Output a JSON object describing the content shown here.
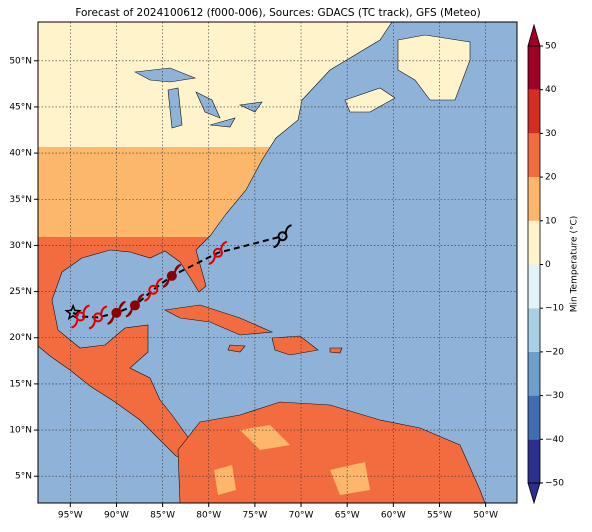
{
  "chart_data": {
    "type": "map",
    "title": "Forecast of 2024100612 (f000-006), Sources: GDACS (TC track), GFS (Meteo)",
    "xlim": [
      -98.5,
      -46.6
    ],
    "ylim": [
      2.1,
      54.2
    ],
    "xticks": [
      {
        "value": -95,
        "label": "95°W"
      },
      {
        "value": -90,
        "label": "90°W"
      },
      {
        "value": -85,
        "label": "85°W"
      },
      {
        "value": -80,
        "label": "80°W"
      },
      {
        "value": -75,
        "label": "75°W"
      },
      {
        "value": -70,
        "label": "70°W"
      },
      {
        "value": -65,
        "label": "65°W"
      },
      {
        "value": -60,
        "label": "60°W"
      },
      {
        "value": -55,
        "label": "55°W"
      },
      {
        "value": -50,
        "label": "50°W"
      }
    ],
    "yticks": [
      {
        "value": 5,
        "label": "5°N"
      },
      {
        "value": 10,
        "label": "10°N"
      },
      {
        "value": 15,
        "label": "15°N"
      },
      {
        "value": 20,
        "label": "20°N"
      },
      {
        "value": 25,
        "label": "25°N"
      },
      {
        "value": 30,
        "label": "30°N"
      },
      {
        "value": 35,
        "label": "35°N"
      },
      {
        "value": 40,
        "label": "40°N"
      },
      {
        "value": 45,
        "label": "45°N"
      },
      {
        "value": 50,
        "label": "50°N"
      }
    ],
    "grid": true,
    "track": {
      "lon": [
        -94.7,
        -93.9,
        -92.0,
        -90.0,
        -88.0,
        -86.0,
        -84.0,
        -79.0,
        -72.0
      ],
      "lat": [
        22.7,
        22.3,
        22.2,
        22.7,
        23.5,
        25.2,
        26.7,
        29.2,
        31.0
      ],
      "marker_colors": [
        "#000000",
        "#e00000",
        "#e00000",
        "#8b0000",
        "#8b0000",
        "#e00000",
        "#8b0000",
        "#e00000",
        "#000000"
      ]
    },
    "colorbar": {
      "label": "Min Temperature (°C)",
      "lim": [
        -50,
        50
      ],
      "ticks": [
        {
          "value": -50,
          "label": "−50"
        },
        {
          "value": -40,
          "label": "−40"
        },
        {
          "value": -30,
          "label": "−30"
        },
        {
          "value": -20,
          "label": "−20"
        },
        {
          "value": -10,
          "label": "−10"
        },
        0,
        10,
        20,
        30,
        40,
        50
      ],
      "colors": [
        "#2c2f8e",
        "#3f6db0",
        "#6d9fcd",
        "#a8cfe4",
        "#e4f3f7",
        "#fff3cc",
        "#fdb76b",
        "#f26c40",
        "#d42e24",
        "#a00026"
      ]
    }
  }
}
